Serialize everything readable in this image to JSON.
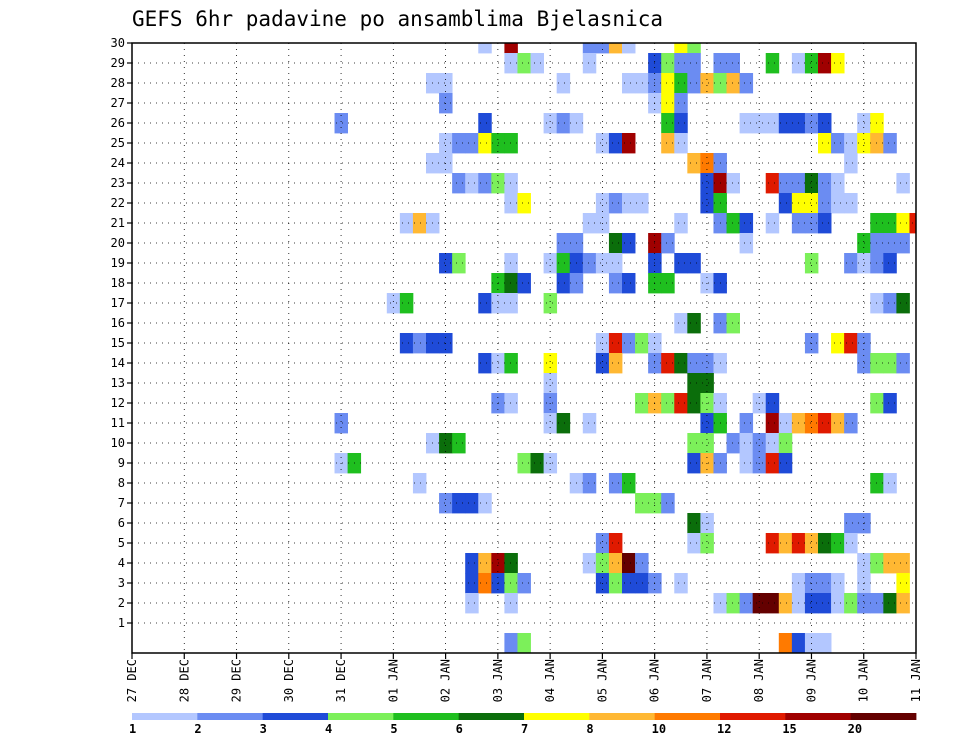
{
  "chart_data": {
    "type": "heatmap",
    "title": "GEFS 6hr padavine po ansamblima Bjelasnica",
    "xlabel": "",
    "ylabel": "",
    "x_range": [
      "27 DEC 00",
      "11 JAN 06"
    ],
    "steps_per_day": 4,
    "total_steps": 61,
    "y_range": [
      0,
      30
    ],
    "grid": true,
    "x_ticks": [
      "27 DEC",
      "28 DEC",
      "29 DEC",
      "30 DEC",
      "31 DEC",
      "01 JAN",
      "02 JAN",
      "03 JAN",
      "04 JAN",
      "05 JAN",
      "06 JAN",
      "07 JAN",
      "08 JAN",
      "09 JAN",
      "10 JAN",
      "11 JAN"
    ],
    "y_ticks": [
      1,
      2,
      3,
      4,
      5,
      6,
      7,
      8,
      9,
      10,
      11,
      12,
      13,
      14,
      15,
      16,
      17,
      18,
      19,
      20,
      21,
      22,
      23,
      24,
      25,
      26,
      27,
      28,
      29,
      30
    ],
    "levels": [
      1,
      2,
      3,
      4,
      5,
      6,
      7,
      8,
      10,
      12,
      15,
      20
    ],
    "level_labels": [
      "1",
      "2",
      "3",
      "4",
      "5",
      "6",
      "7",
      "8",
      "10",
      "12",
      "15",
      "20"
    ],
    "colors": [
      "#b3c7ff",
      "#6b8cf2",
      "#1f4bd8",
      "#7cf05a",
      "#1fbf1f",
      "#0b6e0b",
      "#ffff00",
      "#ffb833",
      "#ff7a00",
      "#e01a00",
      "#a00000",
      "#640000"
    ],
    "colorbar_position": "bottom",
    "cells": [
      [
        30,
        27,
        1
      ],
      [
        30,
        29,
        11
      ],
      [
        30,
        35,
        2
      ],
      [
        30,
        36,
        2
      ],
      [
        30,
        37,
        8
      ],
      [
        30,
        38,
        1
      ],
      [
        30,
        42,
        7
      ],
      [
        30,
        43,
        4
      ],
      [
        29,
        29,
        1
      ],
      [
        29,
        30,
        4
      ],
      [
        29,
        31,
        1
      ],
      [
        29,
        35,
        1
      ],
      [
        29,
        40,
        3
      ],
      [
        29,
        41,
        4
      ],
      [
        29,
        42,
        2
      ],
      [
        29,
        43,
        2
      ],
      [
        29,
        45,
        2
      ],
      [
        29,
        46,
        2
      ],
      [
        29,
        49,
        5
      ],
      [
        29,
        51,
        1
      ],
      [
        29,
        52,
        5
      ],
      [
        29,
        53,
        11
      ],
      [
        29,
        54,
        7
      ],
      [
        28,
        23,
        1
      ],
      [
        28,
        24,
        1
      ],
      [
        28,
        33,
        1
      ],
      [
        28,
        38,
        1
      ],
      [
        28,
        39,
        1
      ],
      [
        28,
        40,
        2
      ],
      [
        28,
        41,
        7
      ],
      [
        28,
        42,
        5
      ],
      [
        28,
        43,
        2
      ],
      [
        28,
        44,
        8
      ],
      [
        28,
        45,
        4
      ],
      [
        28,
        46,
        8
      ],
      [
        28,
        47,
        2
      ],
      [
        27,
        24,
        2
      ],
      [
        27,
        40,
        1
      ],
      [
        27,
        41,
        7
      ],
      [
        27,
        42,
        2
      ],
      [
        26,
        16,
        2
      ],
      [
        26,
        27,
        3
      ],
      [
        26,
        32,
        1
      ],
      [
        26,
        33,
        2
      ],
      [
        26,
        34,
        1
      ],
      [
        26,
        41,
        5
      ],
      [
        26,
        42,
        3
      ],
      [
        26,
        47,
        1
      ],
      [
        26,
        48,
        1
      ],
      [
        26,
        49,
        1
      ],
      [
        26,
        50,
        3
      ],
      [
        26,
        51,
        3
      ],
      [
        26,
        52,
        2
      ],
      [
        26,
        53,
        3
      ],
      [
        26,
        56,
        1
      ],
      [
        26,
        57,
        7
      ],
      [
        25,
        24,
        1
      ],
      [
        25,
        25,
        2
      ],
      [
        25,
        26,
        2
      ],
      [
        25,
        27,
        7
      ],
      [
        25,
        28,
        5
      ],
      [
        25,
        29,
        5
      ],
      [
        25,
        36,
        1
      ],
      [
        25,
        37,
        3
      ],
      [
        25,
        38,
        11
      ],
      [
        25,
        41,
        8
      ],
      [
        25,
        42,
        1
      ],
      [
        25,
        53,
        7
      ],
      [
        25,
        54,
        2
      ],
      [
        25,
        55,
        1
      ],
      [
        25,
        56,
        7
      ],
      [
        25,
        57,
        8
      ],
      [
        25,
        58,
        2
      ],
      [
        24,
        23,
        1
      ],
      [
        24,
        24,
        1
      ],
      [
        24,
        43,
        8
      ],
      [
        24,
        44,
        9
      ],
      [
        24,
        45,
        2
      ],
      [
        24,
        55,
        1
      ],
      [
        23,
        25,
        2
      ],
      [
        23,
        26,
        1
      ],
      [
        23,
        27,
        2
      ],
      [
        23,
        28,
        4
      ],
      [
        23,
        29,
        1
      ],
      [
        23,
        44,
        3
      ],
      [
        23,
        45,
        11
      ],
      [
        23,
        46,
        1
      ],
      [
        23,
        49,
        10
      ],
      [
        23,
        50,
        2
      ],
      [
        23,
        51,
        2
      ],
      [
        23,
        52,
        6
      ],
      [
        23,
        53,
        2
      ],
      [
        23,
        54,
        1
      ],
      [
        23,
        59,
        1
      ],
      [
        22,
        29,
        1
      ],
      [
        22,
        30,
        7
      ],
      [
        22,
        36,
        1
      ],
      [
        22,
        37,
        2
      ],
      [
        22,
        38,
        1
      ],
      [
        22,
        39,
        1
      ],
      [
        22,
        44,
        3
      ],
      [
        22,
        45,
        5
      ],
      [
        22,
        50,
        3
      ],
      [
        22,
        51,
        7
      ],
      [
        22,
        52,
        7
      ],
      [
        22,
        53,
        2
      ],
      [
        22,
        54,
        1
      ],
      [
        22,
        55,
        1
      ],
      [
        21,
        21,
        1
      ],
      [
        21,
        22,
        8
      ],
      [
        21,
        23,
        1
      ],
      [
        21,
        35,
        1
      ],
      [
        21,
        36,
        1
      ],
      [
        21,
        42,
        1
      ],
      [
        21,
        45,
        2
      ],
      [
        21,
        46,
        5
      ],
      [
        21,
        47,
        3
      ],
      [
        21,
        49,
        1
      ],
      [
        21,
        51,
        2
      ],
      [
        21,
        52,
        2
      ],
      [
        21,
        53,
        3
      ],
      [
        21,
        57,
        5
      ],
      [
        21,
        58,
        5
      ],
      [
        21,
        59,
        7
      ],
      [
        21,
        60,
        10
      ],
      [
        20,
        33,
        2
      ],
      [
        20,
        34,
        2
      ],
      [
        20,
        37,
        6
      ],
      [
        20,
        38,
        3
      ],
      [
        20,
        40,
        11
      ],
      [
        20,
        41,
        2
      ],
      [
        20,
        47,
        1
      ],
      [
        20,
        56,
        5
      ],
      [
        20,
        57,
        2
      ],
      [
        20,
        58,
        2
      ],
      [
        20,
        59,
        2
      ],
      [
        19,
        24,
        3
      ],
      [
        19,
        25,
        4
      ],
      [
        19,
        29,
        1
      ],
      [
        19,
        32,
        1
      ],
      [
        19,
        33,
        5
      ],
      [
        19,
        34,
        3
      ],
      [
        19,
        35,
        2
      ],
      [
        19,
        36,
        1
      ],
      [
        19,
        37,
        1
      ],
      [
        19,
        40,
        3
      ],
      [
        19,
        42,
        3
      ],
      [
        19,
        43,
        3
      ],
      [
        19,
        52,
        4
      ],
      [
        19,
        55,
        2
      ],
      [
        19,
        56,
        1
      ],
      [
        19,
        57,
        2
      ],
      [
        19,
        58,
        3
      ],
      [
        18,
        28,
        5
      ],
      [
        18,
        29,
        6
      ],
      [
        18,
        30,
        3
      ],
      [
        18,
        33,
        3
      ],
      [
        18,
        34,
        2
      ],
      [
        18,
        37,
        2
      ],
      [
        18,
        38,
        3
      ],
      [
        18,
        40,
        5
      ],
      [
        18,
        41,
        5
      ],
      [
        18,
        44,
        1
      ],
      [
        18,
        45,
        3
      ],
      [
        17,
        20,
        1
      ],
      [
        17,
        21,
        5
      ],
      [
        17,
        27,
        3
      ],
      [
        17,
        28,
        1
      ],
      [
        17,
        29,
        1
      ],
      [
        17,
        32,
        4
      ],
      [
        17,
        57,
        1
      ],
      [
        17,
        58,
        2
      ],
      [
        17,
        59,
        6
      ],
      [
        16,
        42,
        1
      ],
      [
        16,
        43,
        6
      ],
      [
        16,
        45,
        2
      ],
      [
        16,
        46,
        4
      ],
      [
        15,
        21,
        3
      ],
      [
        15,
        22,
        2
      ],
      [
        15,
        23,
        3
      ],
      [
        15,
        24,
        3
      ],
      [
        15,
        36,
        1
      ],
      [
        15,
        37,
        10
      ],
      [
        15,
        38,
        2
      ],
      [
        15,
        39,
        4
      ],
      [
        15,
        40,
        1
      ],
      [
        15,
        52,
        2
      ],
      [
        15,
        54,
        7
      ],
      [
        15,
        55,
        10
      ],
      [
        15,
        56,
        2
      ],
      [
        14,
        27,
        3
      ],
      [
        14,
        28,
        1
      ],
      [
        14,
        29,
        5
      ],
      [
        14,
        32,
        7
      ],
      [
        14,
        36,
        3
      ],
      [
        14,
        37,
        8
      ],
      [
        14,
        40,
        2
      ],
      [
        14,
        41,
        10
      ],
      [
        14,
        42,
        6
      ],
      [
        14,
        43,
        2
      ],
      [
        14,
        44,
        2
      ],
      [
        14,
        45,
        1
      ],
      [
        14,
        56,
        2
      ],
      [
        14,
        57,
        4
      ],
      [
        14,
        58,
        4
      ],
      [
        14,
        59,
        2
      ],
      [
        13,
        32,
        1
      ],
      [
        13,
        43,
        6
      ],
      [
        13,
        44,
        6
      ],
      [
        12,
        28,
        2
      ],
      [
        12,
        29,
        1
      ],
      [
        12,
        32,
        2
      ],
      [
        12,
        39,
        4
      ],
      [
        12,
        40,
        8
      ],
      [
        12,
        41,
        4
      ],
      [
        12,
        42,
        10
      ],
      [
        12,
        43,
        6
      ],
      [
        12,
        44,
        4
      ],
      [
        12,
        45,
        1
      ],
      [
        12,
        48,
        1
      ],
      [
        12,
        49,
        3
      ],
      [
        12,
        57,
        4
      ],
      [
        12,
        58,
        3
      ],
      [
        11,
        16,
        2
      ],
      [
        11,
        32,
        1
      ],
      [
        11,
        33,
        6
      ],
      [
        11,
        35,
        1
      ],
      [
        11,
        44,
        3
      ],
      [
        11,
        45,
        5
      ],
      [
        11,
        47,
        2
      ],
      [
        11,
        49,
        11
      ],
      [
        11,
        50,
        1
      ],
      [
        11,
        51,
        8
      ],
      [
        11,
        52,
        9
      ],
      [
        11,
        53,
        10
      ],
      [
        11,
        54,
        8
      ],
      [
        11,
        55,
        2
      ],
      [
        10,
        23,
        1
      ],
      [
        10,
        24,
        6
      ],
      [
        10,
        25,
        5
      ],
      [
        10,
        43,
        4
      ],
      [
        10,
        44,
        4
      ],
      [
        10,
        46,
        2
      ],
      [
        10,
        47,
        1
      ],
      [
        10,
        48,
        2
      ],
      [
        10,
        49,
        1
      ],
      [
        10,
        50,
        4
      ],
      [
        9,
        16,
        1
      ],
      [
        9,
        17,
        5
      ],
      [
        9,
        30,
        4
      ],
      [
        9,
        31,
        6
      ],
      [
        9,
        32,
        1
      ],
      [
        9,
        43,
        3
      ],
      [
        9,
        44,
        8
      ],
      [
        9,
        45,
        2
      ],
      [
        9,
        47,
        1
      ],
      [
        9,
        48,
        2
      ],
      [
        9,
        49,
        10
      ],
      [
        9,
        50,
        3
      ],
      [
        8,
        22,
        1
      ],
      [
        8,
        34,
        1
      ],
      [
        8,
        35,
        2
      ],
      [
        8,
        37,
        2
      ],
      [
        8,
        38,
        5
      ],
      [
        8,
        57,
        5
      ],
      [
        8,
        58,
        1
      ],
      [
        7,
        24,
        2
      ],
      [
        7,
        25,
        3
      ],
      [
        7,
        26,
        3
      ],
      [
        7,
        27,
        1
      ],
      [
        7,
        39,
        4
      ],
      [
        7,
        40,
        4
      ],
      [
        7,
        41,
        2
      ],
      [
        6,
        43,
        6
      ],
      [
        6,
        44,
        1
      ],
      [
        6,
        55,
        2
      ],
      [
        6,
        56,
        2
      ],
      [
        5,
        36,
        2
      ],
      [
        5,
        37,
        10
      ],
      [
        5,
        43,
        1
      ],
      [
        5,
        44,
        4
      ],
      [
        5,
        49,
        10
      ],
      [
        5,
        50,
        8
      ],
      [
        5,
        51,
        10
      ],
      [
        5,
        52,
        8
      ],
      [
        5,
        53,
        6
      ],
      [
        5,
        54,
        5
      ],
      [
        5,
        55,
        1
      ],
      [
        4,
        26,
        3
      ],
      [
        4,
        27,
        8
      ],
      [
        4,
        28,
        11
      ],
      [
        4,
        29,
        6
      ],
      [
        4,
        35,
        1
      ],
      [
        4,
        36,
        4
      ],
      [
        4,
        37,
        8
      ],
      [
        4,
        38,
        12
      ],
      [
        4,
        39,
        2
      ],
      [
        4,
        56,
        1
      ],
      [
        4,
        57,
        4
      ],
      [
        4,
        58,
        8
      ],
      [
        4,
        59,
        8
      ],
      [
        3,
        26,
        3
      ],
      [
        3,
        27,
        9
      ],
      [
        3,
        28,
        3
      ],
      [
        3,
        29,
        4
      ],
      [
        3,
        30,
        2
      ],
      [
        3,
        36,
        3
      ],
      [
        3,
        37,
        4
      ],
      [
        3,
        38,
        3
      ],
      [
        3,
        39,
        3
      ],
      [
        3,
        40,
        2
      ],
      [
        3,
        42,
        1
      ],
      [
        3,
        51,
        1
      ],
      [
        3,
        52,
        2
      ],
      [
        3,
        53,
        2
      ],
      [
        3,
        54,
        1
      ],
      [
        3,
        56,
        1
      ],
      [
        3,
        59,
        7
      ],
      [
        2,
        26,
        1
      ],
      [
        2,
        29,
        1
      ],
      [
        2,
        45,
        1
      ],
      [
        2,
        46,
        4
      ],
      [
        2,
        47,
        2
      ],
      [
        2,
        48,
        12
      ],
      [
        2,
        49,
        12
      ],
      [
        2,
        50,
        8
      ],
      [
        2,
        51,
        1
      ],
      [
        2,
        52,
        3
      ],
      [
        2,
        53,
        3
      ],
      [
        2,
        54,
        1
      ],
      [
        2,
        55,
        4
      ],
      [
        2,
        56,
        2
      ],
      [
        2,
        57,
        2
      ],
      [
        2,
        58,
        6
      ],
      [
        2,
        59,
        8
      ],
      [
        0,
        29,
        2
      ],
      [
        0,
        30,
        4
      ],
      [
        0,
        50,
        9
      ],
      [
        0,
        51,
        3
      ],
      [
        0,
        52,
        1
      ],
      [
        0,
        53,
        1
      ]
    ]
  }
}
